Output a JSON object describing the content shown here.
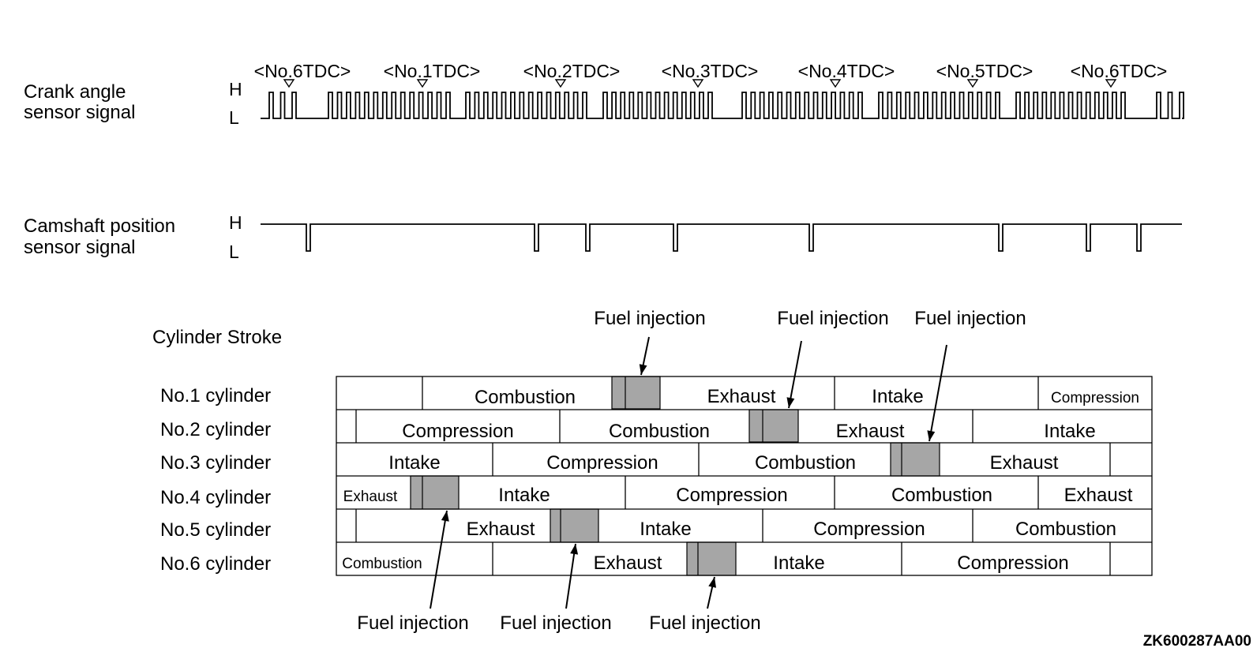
{
  "crank": {
    "label_line1": "Crank angle",
    "label_line2": "sensor signal",
    "high": "H",
    "low": "L",
    "tdc_labels": [
      "<No.6TDC>",
      "<No.1TDC>",
      "<No.2TDC>",
      "<No.3TDC>",
      "<No.4TDC>",
      "<No.5TDC>",
      "<No.6TDC>"
    ]
  },
  "camshaft": {
    "label_line1": "Camshaft position",
    "label_line2": "sensor signal",
    "high": "H",
    "low": "L"
  },
  "stroke_table": {
    "title": "Cylinder Stroke",
    "cylinders": [
      {
        "name": "No.1 cylinder",
        "strokes": [
          "",
          "Combustion",
          "Exhaust",
          "Intake",
          "Compression"
        ]
      },
      {
        "name": "No.2 cylinder",
        "strokes": [
          "",
          "Compression",
          "Combustion",
          "Exhaust",
          "Intake"
        ]
      },
      {
        "name": "No.3 cylinder",
        "strokes": [
          "Intake",
          "Compression",
          "Combustion",
          "Exhaust",
          ""
        ]
      },
      {
        "name": "No.4 cylinder",
        "strokes": [
          "Exhaust",
          "Intake",
          "Compression",
          "Combustion",
          "Exhaust"
        ]
      },
      {
        "name": "No.5 cylinder",
        "strokes": [
          "",
          "Exhaust",
          "Intake",
          "Compression",
          "Combustion"
        ]
      },
      {
        "name": "No.6 cylinder",
        "strokes": [
          "Combustion",
          "Exhaust",
          "Intake",
          "Compression",
          ""
        ]
      }
    ],
    "injection_label": "Fuel injection"
  },
  "figure_code": "ZK600287AA00",
  "colors": {
    "line": "#000000",
    "injection_fill": "#a6a6a6"
  }
}
